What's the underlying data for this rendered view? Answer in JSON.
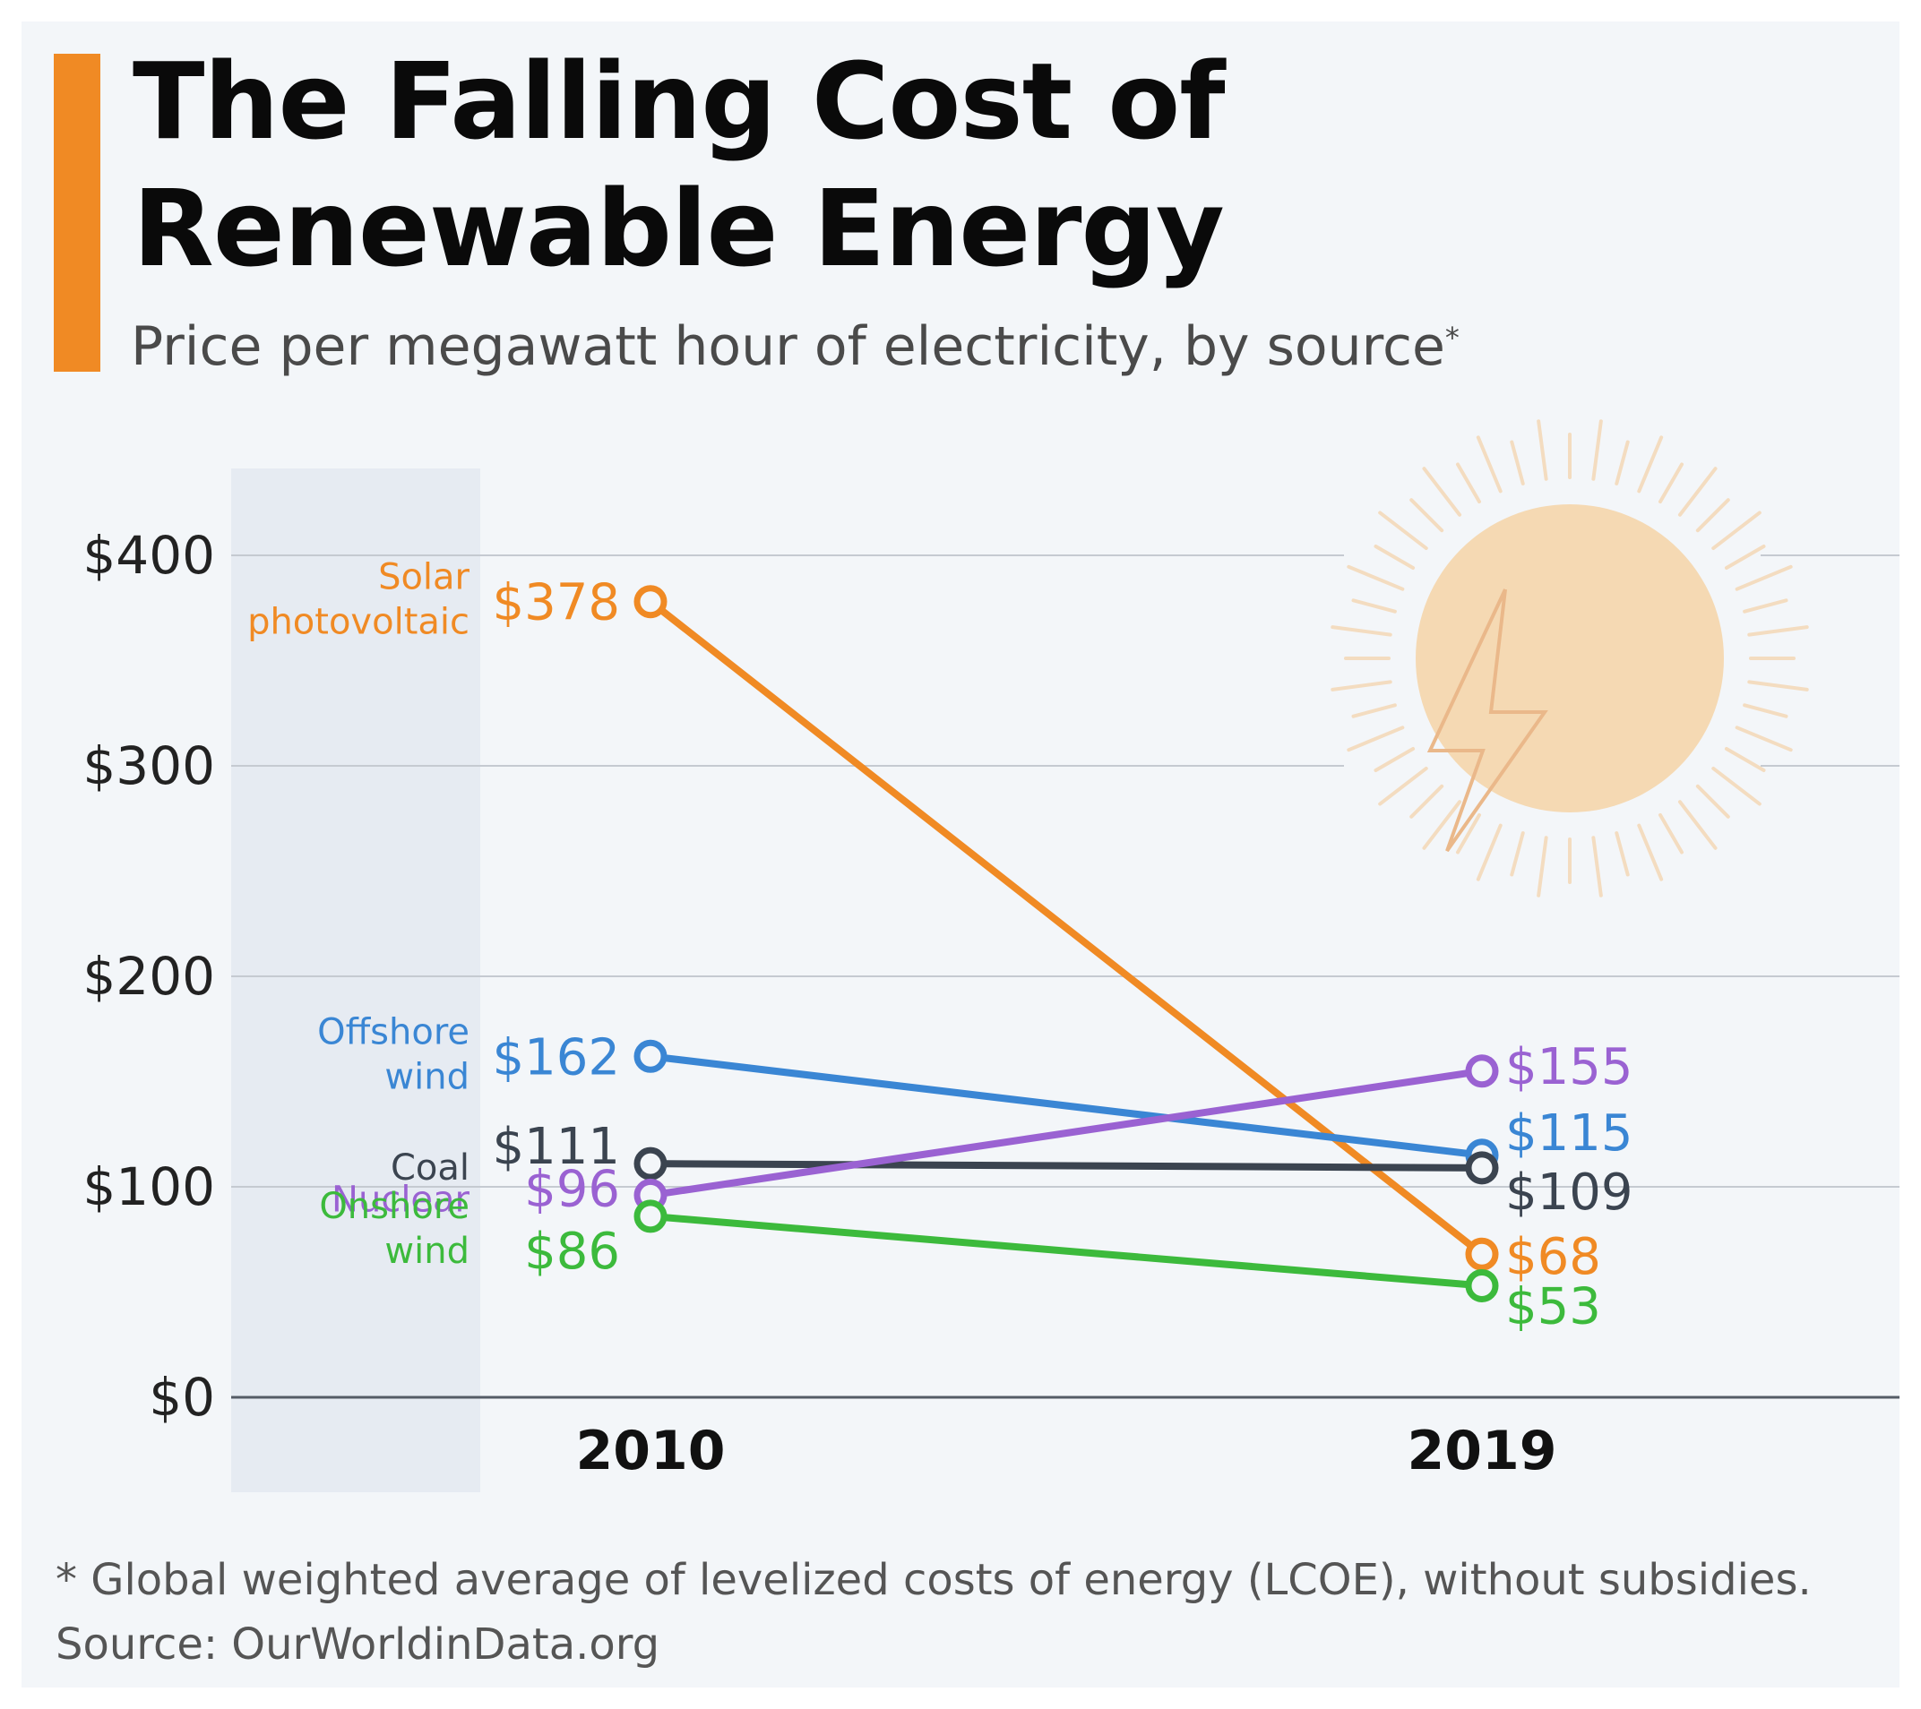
{
  "colors": {
    "accent": "#f08a24",
    "background": "#f3f6f9",
    "label_band": "#e6ebf2",
    "grid": "#c5cad1",
    "baseline": "#555c66",
    "sun": "#f5d9b3",
    "sun_rays": "#f3dcc0",
    "bolt": "#eab88a"
  },
  "header": {
    "title_line1": "The Falling Cost of",
    "title_line2": "Renewable Energy",
    "subtitle": "Price per megawatt hour of electricity, by source",
    "subtitle_mark": "*"
  },
  "chart_data": {
    "type": "line",
    "title": "The Falling Cost of Renewable Energy",
    "subtitle": "Price per megawatt hour of electricity, by source*",
    "xlabel": "",
    "ylabel": "",
    "ylim": [
      0,
      400
    ],
    "yticks": [
      0,
      100,
      200,
      300,
      400
    ],
    "ytick_labels": [
      "$0",
      "$100",
      "$200",
      "$300",
      "$400"
    ],
    "categories": [
      "2010",
      "2019"
    ],
    "grid": true,
    "legend": "direct-labels-left",
    "series": [
      {
        "id": "solar",
        "name_lines": [
          "Solar",
          "photovoltaic"
        ],
        "color": "#f08a24",
        "values": [
          378,
          68
        ],
        "labels": [
          "$378",
          "$68"
        ]
      },
      {
        "id": "offshore",
        "name_lines": [
          "Offshore",
          "wind"
        ],
        "color": "#3a86d4",
        "values": [
          162,
          115
        ],
        "labels": [
          "$162",
          "$115"
        ]
      },
      {
        "id": "coal",
        "name_lines": [
          "Coal"
        ],
        "color": "#3b4450",
        "values": [
          111,
          109
        ],
        "labels": [
          "$111",
          "$109"
        ]
      },
      {
        "id": "nuclear",
        "name_lines": [
          "Nuclear"
        ],
        "color": "#9a62d2",
        "values": [
          96,
          155
        ],
        "labels": [
          "$96",
          "$155"
        ]
      },
      {
        "id": "onshore",
        "name_lines": [
          "Onshore",
          "wind"
        ],
        "color": "#3cba3c",
        "values": [
          86,
          53
        ],
        "labels": [
          "$86",
          "$53"
        ]
      }
    ]
  },
  "footer": {
    "footnote": "* Global weighted average of levelized costs of energy (LCOE), without subsidies.",
    "source": "Source: OurWorldinData.org"
  }
}
